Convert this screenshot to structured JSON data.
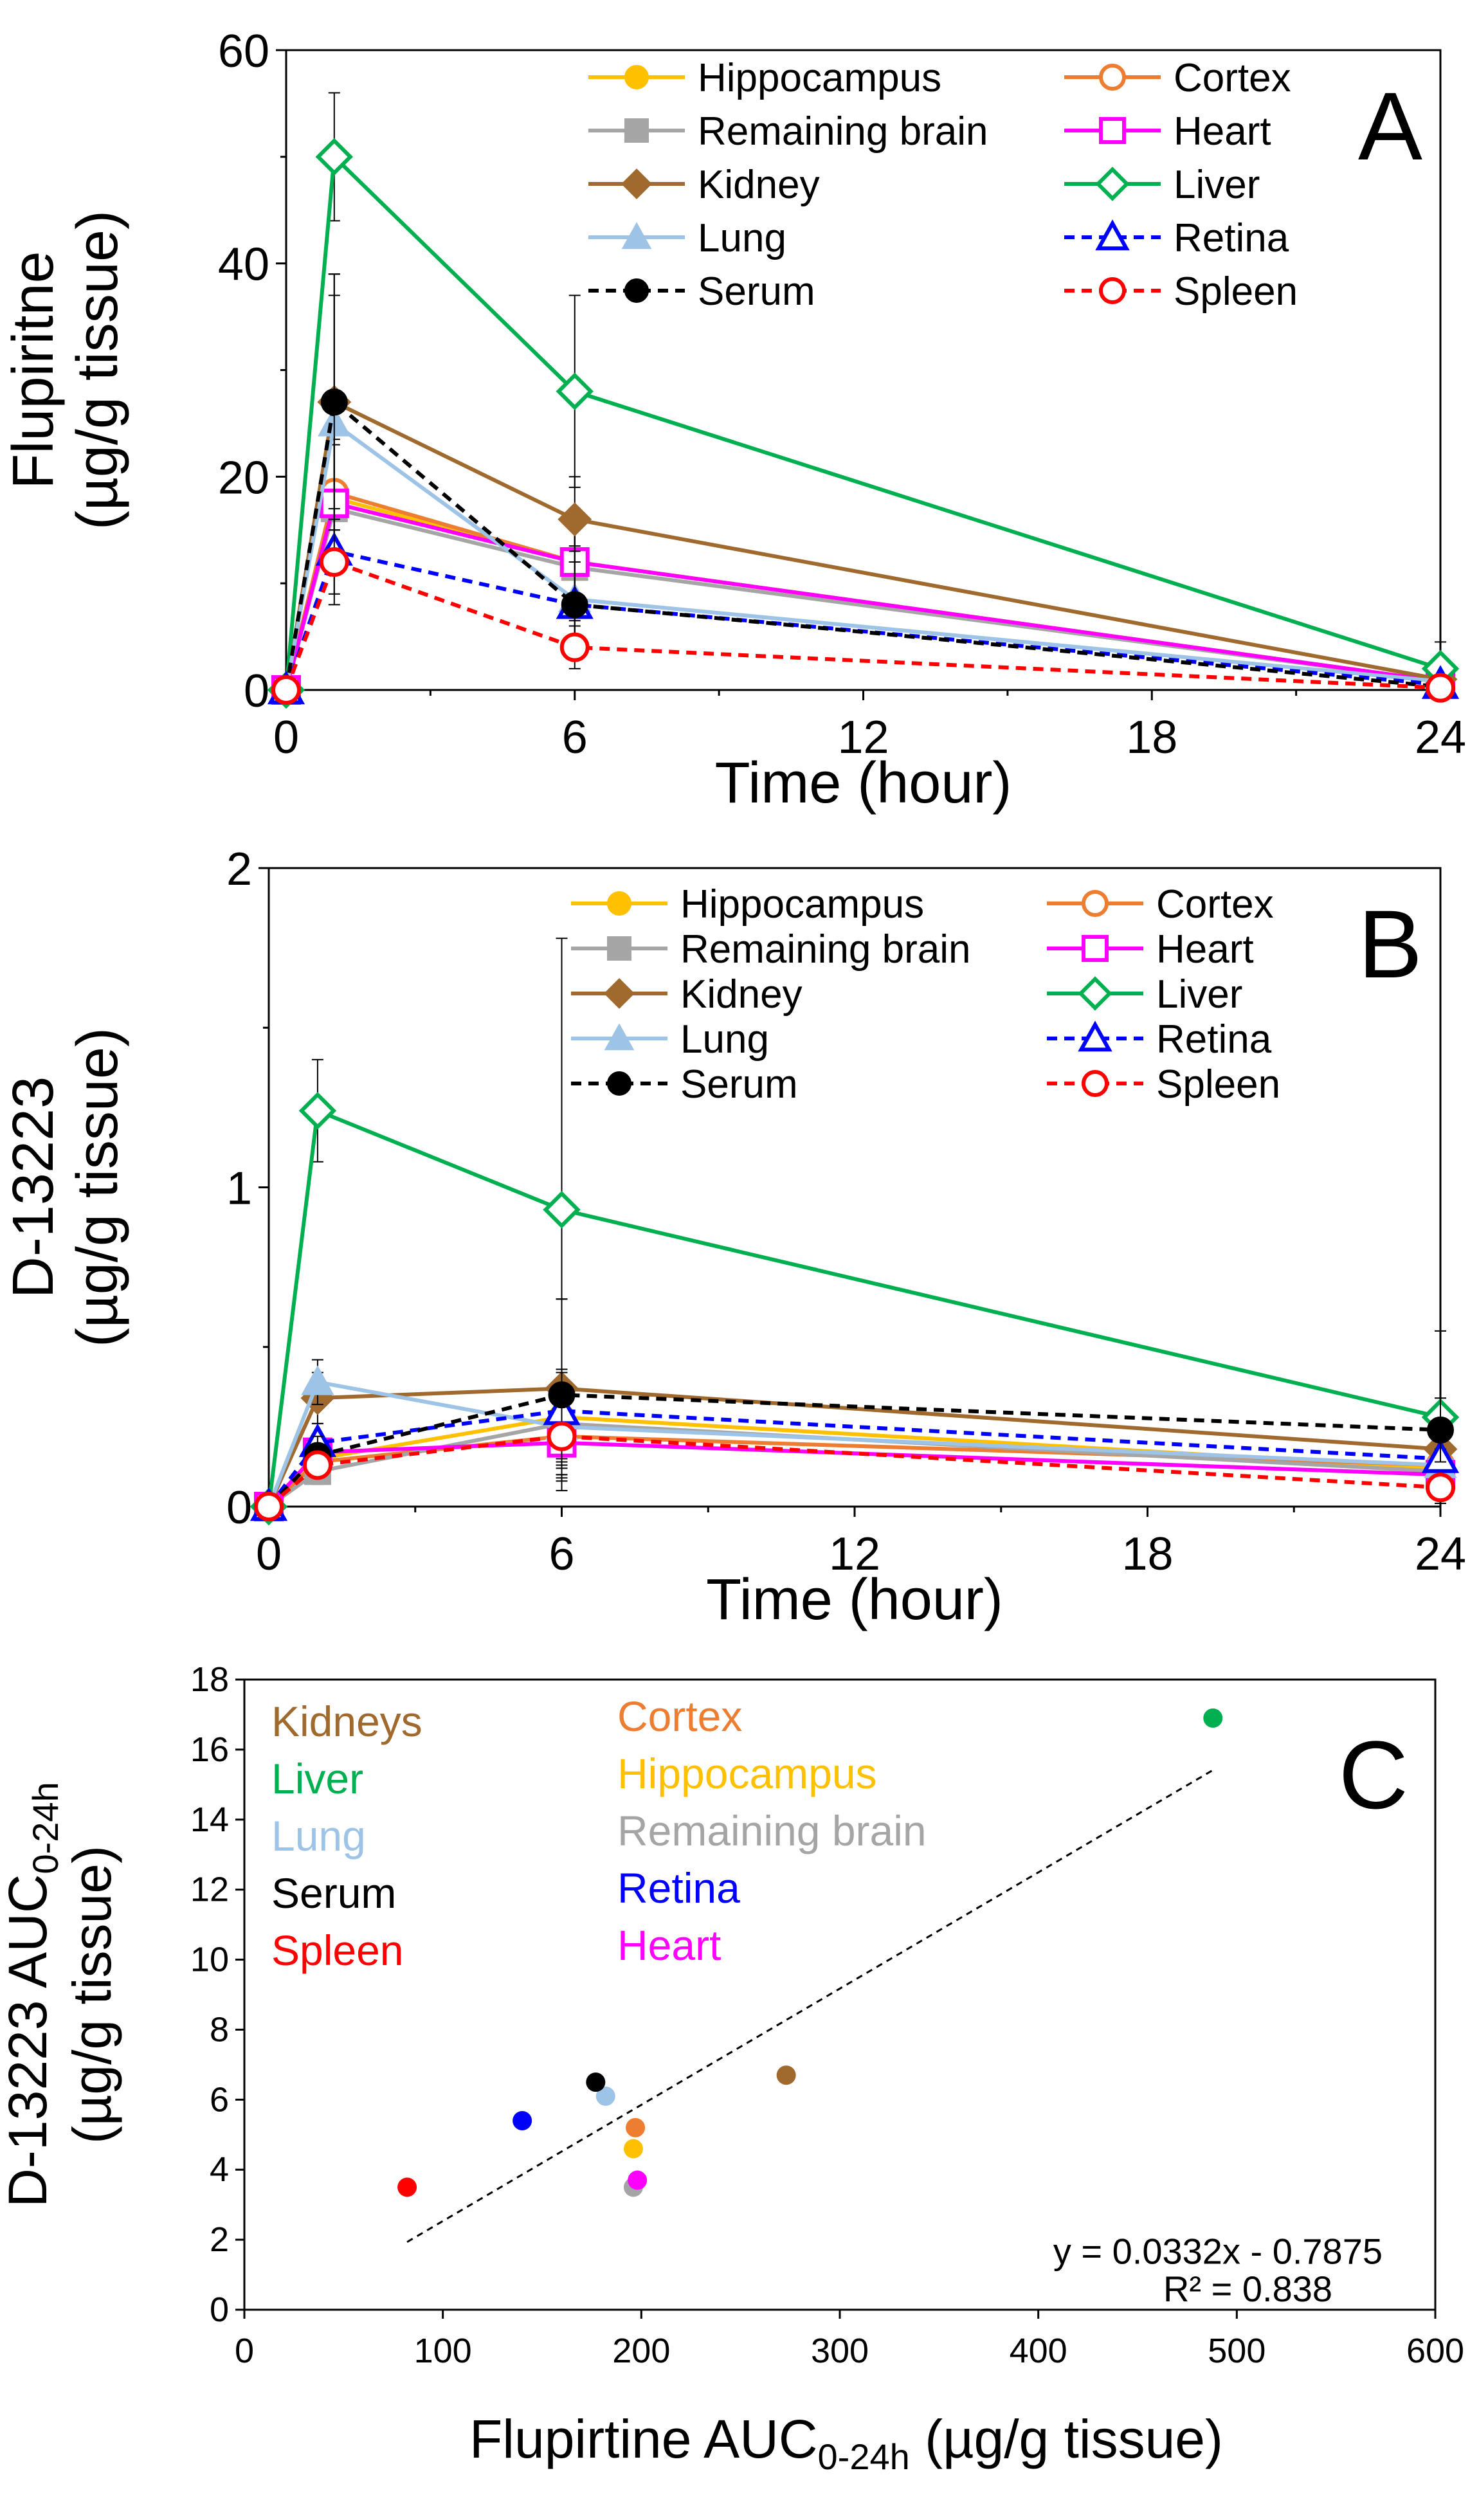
{
  "chart_data": [
    {
      "type": "line",
      "panel_letter": "A",
      "ylabel_line1": "Flupiritne",
      "ylabel_line2": "(µg/g tissue)",
      "xlabel": "Time (hour)",
      "x": [
        0,
        1,
        6,
        24
      ],
      "xlim": [
        0,
        24
      ],
      "xticks": [
        0,
        6,
        12,
        18,
        24
      ],
      "xtick_labels": [
        "0",
        "6",
        "12",
        "18",
        "24"
      ],
      "ylim": [
        0,
        60
      ],
      "yticks": [
        0,
        20,
        40,
        60
      ],
      "ytick_labels": [
        "0",
        "20",
        "40",
        "60"
      ],
      "series": [
        {
          "name": "Hippocampus",
          "values": [
            0,
            18,
            12,
            0.8
          ],
          "err": [
            0,
            6,
            5,
            0.5
          ],
          "color": "#FFC000",
          "marker": "circle-filled",
          "dashed": false
        },
        {
          "name": "Cortex",
          "values": [
            0,
            18.5,
            12,
            0.8
          ],
          "err": [
            0,
            6,
            5,
            0.5
          ],
          "color": "#ED7D31",
          "marker": "circle-open",
          "dashed": false
        },
        {
          "name": "Remaining brain",
          "values": [
            0,
            17,
            11.5,
            0.8
          ],
          "err": [
            0,
            6,
            5,
            0.5
          ],
          "color": "#A5A5A5",
          "marker": "square-filled",
          "dashed": false
        },
        {
          "name": "Heart",
          "values": [
            0,
            17.5,
            12,
            0.8
          ],
          "err": [
            0,
            6,
            5,
            0.5
          ],
          "color": "#FF00FF",
          "marker": "square-open",
          "dashed": false
        },
        {
          "name": "Kidney",
          "values": [
            0,
            27,
            16,
            1
          ],
          "err": [
            0,
            12,
            4,
            0.8
          ],
          "color": "#A0692E",
          "marker": "diamond-filled",
          "dashed": false
        },
        {
          "name": "Liver",
          "values": [
            0,
            50,
            28,
            2
          ],
          "err": [
            0,
            6,
            9,
            2.5
          ],
          "color": "#00B050",
          "marker": "diamond-open",
          "dashed": false
        },
        {
          "name": "Lung",
          "values": [
            0,
            25,
            8.5,
            0.8
          ],
          "err": [
            0,
            12,
            5,
            0.5
          ],
          "color": "#9DC3E6",
          "marker": "triangle-filled",
          "dashed": false
        },
        {
          "name": "Retina",
          "values": [
            0,
            13,
            8,
            0.5
          ],
          "err": [
            0,
            4,
            4,
            0.3
          ],
          "color": "#0000FF",
          "marker": "triangle-open",
          "dashed": true
        },
        {
          "name": "Serum",
          "values": [
            0,
            27,
            8,
            0.3
          ],
          "err": [
            0,
            12,
            5,
            0.3
          ],
          "color": "#000000",
          "marker": "circle-filled",
          "dashed": true
        },
        {
          "name": "Spleen",
          "values": [
            0,
            12,
            4,
            0.2
          ],
          "err": [
            0,
            4,
            2,
            0.2
          ],
          "color": "#FF0000",
          "marker": "circle-open",
          "dashed": true
        }
      ]
    },
    {
      "type": "line",
      "panel_letter": "B",
      "ylabel_line1": "D-13223",
      "ylabel_line2": "(µg/g tissue)",
      "xlabel": "Time (hour)",
      "x": [
        0,
        1,
        6,
        24
      ],
      "xlim": [
        0,
        24
      ],
      "xticks": [
        0,
        6,
        12,
        18,
        24
      ],
      "xtick_labels": [
        "0",
        "6",
        "12",
        "18",
        "24"
      ],
      "ylim": [
        0,
        2
      ],
      "yticks": [
        0,
        1,
        2
      ],
      "ytick_labels": [
        "0",
        "1",
        "2"
      ],
      "series": [
        {
          "name": "Hippocampus",
          "values": [
            0,
            0.15,
            0.28,
            0.12
          ],
          "err": [
            0,
            0.05,
            0.15,
            0.05
          ],
          "color": "#FFC000",
          "marker": "circle-filled",
          "dashed": false
        },
        {
          "name": "Cortex",
          "values": [
            0,
            0.14,
            0.22,
            0.13
          ],
          "err": [
            0,
            0.05,
            0.12,
            0.05
          ],
          "color": "#ED7D31",
          "marker": "circle-open",
          "dashed": false
        },
        {
          "name": "Remaining brain",
          "values": [
            0,
            0.11,
            0.26,
            0.11
          ],
          "err": [
            0,
            0.04,
            0.12,
            0.05
          ],
          "color": "#A5A5A5",
          "marker": "square-filled",
          "dashed": false
        },
        {
          "name": "Heart",
          "values": [
            0,
            0.17,
            0.2,
            0.1
          ],
          "err": [
            0,
            0.05,
            0.1,
            0.05
          ],
          "color": "#FF00FF",
          "marker": "square-open",
          "dashed": false
        },
        {
          "name": "Kidney",
          "values": [
            0,
            0.34,
            0.37,
            0.18
          ],
          "err": [
            0,
            0.08,
            0.28,
            0.08
          ],
          "color": "#A0692E",
          "marker": "diamond-filled",
          "dashed": false
        },
        {
          "name": "Liver",
          "values": [
            0,
            1.24,
            0.93,
            0.28
          ],
          "err": [
            0,
            0.16,
            0.85,
            0.27
          ],
          "color": "#00B050",
          "marker": "diamond-open",
          "dashed": false
        },
        {
          "name": "Lung",
          "values": [
            0,
            0.39,
            0.25,
            0.13
          ],
          "err": [
            0,
            0.07,
            0.1,
            0.05
          ],
          "color": "#9DC3E6",
          "marker": "triangle-filled",
          "dashed": false
        },
        {
          "name": "Retina",
          "values": [
            0,
            0.2,
            0.3,
            0.15
          ],
          "err": [
            0,
            0.06,
            0.12,
            0.06
          ],
          "color": "#0000FF",
          "marker": "triangle-open",
          "dashed": true
        },
        {
          "name": "Serum",
          "values": [
            0,
            0.16,
            0.35,
            0.24
          ],
          "err": [
            0,
            0.06,
            0.3,
            0.1
          ],
          "color": "#000000",
          "marker": "circle-filled",
          "dashed": true
        },
        {
          "name": "Spleen",
          "values": [
            0,
            0.13,
            0.22,
            0.06
          ],
          "err": [
            0,
            0.04,
            0.1,
            0.03
          ],
          "color": "#FF0000",
          "marker": "circle-open",
          "dashed": true
        }
      ]
    },
    {
      "type": "scatter",
      "panel_letter": "C",
      "ylabel_line1": "D-13223 AUC",
      "ylabel_sub": "0-24h",
      "ylabel_line2": "(µg/g tissue)",
      "xlabel": "Flupirtine AUC",
      "xlabel_sub": "0-24h",
      "xlabel_suffix": " (µg/g tissue)",
      "xlim": [
        0,
        600
      ],
      "xticks": [
        0,
        100,
        200,
        300,
        400,
        500,
        600
      ],
      "xtick_labels": [
        "0",
        "100",
        "200",
        "300",
        "400",
        "500",
        "600"
      ],
      "ylim": [
        0,
        18
      ],
      "yticks": [
        0,
        2,
        4,
        6,
        8,
        10,
        12,
        14,
        16,
        18
      ],
      "ytick_labels": [
        "0",
        "2",
        "4",
        "6",
        "8",
        "10",
        "12",
        "14",
        "16",
        "18"
      ],
      "points": [
        {
          "name": "Kidneys",
          "x": 273,
          "y": 6.7,
          "color": "#A0692E"
        },
        {
          "name": "Liver",
          "x": 488,
          "y": 16.9,
          "color": "#00B050"
        },
        {
          "name": "Lung",
          "x": 182,
          "y": 6.1,
          "color": "#9DC3E6"
        },
        {
          "name": "Serum",
          "x": 177,
          "y": 6.5,
          "color": "#000000"
        },
        {
          "name": "Spleen",
          "x": 82,
          "y": 3.5,
          "color": "#FF0000"
        },
        {
          "name": "Cortex",
          "x": 197,
          "y": 5.2,
          "color": "#ED7D31"
        },
        {
          "name": "Hippocampus",
          "x": 196,
          "y": 4.6,
          "color": "#FFC000"
        },
        {
          "name": "Remaining brain",
          "x": 196,
          "y": 3.5,
          "color": "#A5A5A5"
        },
        {
          "name": "Retina",
          "x": 140,
          "y": 5.4,
          "color": "#0000FF"
        },
        {
          "name": "Heart",
          "x": 198,
          "y": 3.7,
          "color": "#FF00FF"
        }
      ],
      "legend_col1": [
        "Kidneys",
        "Liver",
        "Lung",
        "Serum",
        "Spleen"
      ],
      "legend_col2": [
        "Cortex",
        "Hippocampus",
        "Remaining brain",
        "Retina",
        "Heart"
      ],
      "trendline": {
        "slope": 0.0332,
        "intercept": -0.7875,
        "x_range": [
          82,
          488
        ]
      },
      "equation": "y = 0.0332x - 0.7875",
      "r_squared": "R² = 0.838"
    }
  ]
}
